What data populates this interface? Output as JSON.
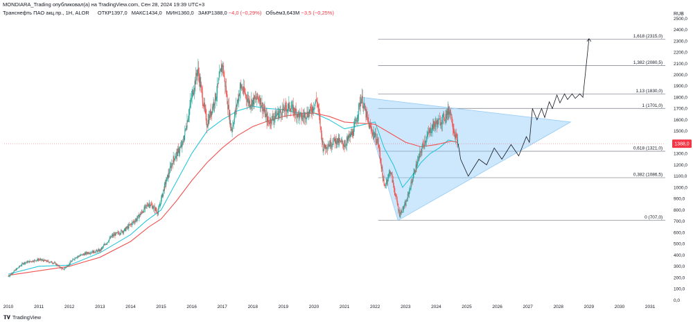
{
  "header": {
    "author_line": "MONDIARA_Trading опубликовал(а) на TradingView.com, Сен 28, 2024 19:39 UTC+3",
    "symbol": "Транснефть ПАО акц.пр., 1Н, ALOR",
    "open_label": "ОТКР",
    "open": "1397,0",
    "high_label": "МАКС",
    "high": "1434,0",
    "low_label": "МИН",
    "low": "1360,0",
    "close_label": "ЗАКР",
    "close": "1388,0",
    "change": "−4,0 (−0,29%)",
    "volume_label": "Объём",
    "volume": "3,643M",
    "volume_change": "−3,5 (−0,25%)"
  },
  "currency": "RUB",
  "branding": "TradingView",
  "price_label": "1388,0",
  "colors": {
    "up": "#26a69a",
    "down": "#ef5350",
    "ma_fast": "#26c6da",
    "ma_slow": "#ef5350",
    "triangle": "#90caf9",
    "fib": "#787b86",
    "projection": "#131722"
  },
  "chart_data": {
    "type": "candlestick",
    "x_axis": {
      "labels": [
        "2010",
        "2011",
        "2012",
        "2013",
        "2014",
        "2015",
        "2016",
        "2017",
        "2018",
        "2019",
        "2020",
        "2021",
        "2022",
        "2023",
        "2024",
        "2025",
        "2026",
        "2027",
        "2028",
        "2029",
        "2030",
        "2031"
      ]
    },
    "y_axis": {
      "min": 0,
      "max": 2500,
      "step": 100,
      "labels": [
        "0,0",
        "100,0",
        "200,0",
        "300,0",
        "400,0",
        "500,0",
        "600,0",
        "700,0",
        "800,0",
        "900,0",
        "1000,0",
        "1100,0",
        "1200,0",
        "1300,0",
        "1400,0",
        "1500,0",
        "1600,0",
        "1700,0",
        "1800,0",
        "1900,0",
        "2000,0",
        "2100,0",
        "2200,0",
        "2300,0",
        "2400,0",
        "2500,0"
      ]
    },
    "last_price": 1388.0,
    "price_path": [
      [
        2010.0,
        210
      ],
      [
        2010.5,
        330
      ],
      [
        2011.0,
        360
      ],
      [
        2011.5,
        330
      ],
      [
        2011.8,
        270
      ],
      [
        2012.2,
        380
      ],
      [
        2012.6,
        420
      ],
      [
        2013.0,
        440
      ],
      [
        2013.4,
        570
      ],
      [
        2013.8,
        620
      ],
      [
        2014.2,
        720
      ],
      [
        2014.6,
        860
      ],
      [
        2014.9,
        780
      ],
      [
        2015.1,
        1000
      ],
      [
        2015.4,
        1250
      ],
      [
        2015.7,
        1380
      ],
      [
        2016.0,
        1800
      ],
      [
        2016.2,
        2050
      ],
      [
        2016.5,
        1560
      ],
      [
        2016.8,
        1820
      ],
      [
        2017.0,
        2100
      ],
      [
        2017.3,
        1500
      ],
      [
        2017.6,
        1900
      ],
      [
        2017.9,
        1750
      ],
      [
        2018.2,
        1800
      ],
      [
        2018.5,
        1580
      ],
      [
        2018.8,
        1650
      ],
      [
        2019.2,
        1720
      ],
      [
        2019.6,
        1620
      ],
      [
        2019.9,
        1680
      ],
      [
        2020.1,
        1780
      ],
      [
        2020.3,
        1350
      ],
      [
        2020.7,
        1420
      ],
      [
        2021.0,
        1380
      ],
      [
        2021.3,
        1500
      ],
      [
        2021.55,
        1800
      ],
      [
        2021.8,
        1550
      ],
      [
        2022.1,
        1400
      ],
      [
        2022.3,
        1000
      ],
      [
        2022.5,
        1150
      ],
      [
        2022.8,
        760
      ],
      [
        2023.0,
        850
      ],
      [
        2023.3,
        1150
      ],
      [
        2023.6,
        1400
      ],
      [
        2023.9,
        1550
      ],
      [
        2024.2,
        1600
      ],
      [
        2024.45,
        1690
      ],
      [
        2024.6,
        1480
      ],
      [
        2024.72,
        1388
      ]
    ],
    "moving_averages": [
      {
        "name": "MA fast",
        "color": "#26c6da",
        "points": [
          [
            2010.0,
            230
          ],
          [
            2011.0,
            300
          ],
          [
            2012.0,
            310
          ],
          [
            2013.0,
            420
          ],
          [
            2014.0,
            580
          ],
          [
            2014.5,
            700
          ],
          [
            2015.0,
            800
          ],
          [
            2015.5,
            1050
          ],
          [
            2016.0,
            1300
          ],
          [
            2016.5,
            1500
          ],
          [
            2017.0,
            1600
          ],
          [
            2017.5,
            1680
          ],
          [
            2018.0,
            1720
          ],
          [
            2018.5,
            1700
          ],
          [
            2019.0,
            1690
          ],
          [
            2019.5,
            1660
          ],
          [
            2020.0,
            1660
          ],
          [
            2020.5,
            1600
          ],
          [
            2021.0,
            1520
          ],
          [
            2021.5,
            1550
          ],
          [
            2022.0,
            1580
          ],
          [
            2022.3,
            1350
          ],
          [
            2022.6,
            1200
          ],
          [
            2022.9,
            1000
          ],
          [
            2023.2,
            1100
          ],
          [
            2023.5,
            1220
          ],
          [
            2023.8,
            1300
          ],
          [
            2024.1,
            1350
          ],
          [
            2024.4,
            1420
          ],
          [
            2024.7,
            1400
          ]
        ]
      },
      {
        "name": "MA slow",
        "color": "#ef5350",
        "points": [
          [
            2010.0,
            220
          ],
          [
            2011.0,
            260
          ],
          [
            2012.0,
            300
          ],
          [
            2013.0,
            380
          ],
          [
            2014.0,
            520
          ],
          [
            2014.6,
            650
          ],
          [
            2015.0,
            720
          ],
          [
            2015.5,
            880
          ],
          [
            2016.0,
            1060
          ],
          [
            2016.5,
            1220
          ],
          [
            2017.0,
            1350
          ],
          [
            2017.5,
            1460
          ],
          [
            2018.0,
            1540
          ],
          [
            2018.5,
            1590
          ],
          [
            2019.0,
            1630
          ],
          [
            2019.5,
            1650
          ],
          [
            2020.0,
            1660
          ],
          [
            2020.5,
            1630
          ],
          [
            2021.0,
            1580
          ],
          [
            2021.5,
            1570
          ],
          [
            2022.0,
            1560
          ],
          [
            2022.5,
            1480
          ],
          [
            2023.0,
            1400
          ],
          [
            2023.5,
            1360
          ],
          [
            2024.0,
            1380
          ],
          [
            2024.5,
            1410
          ],
          [
            2024.72,
            1400
          ]
        ]
      }
    ],
    "fibonacci_levels": [
      {
        "label": "0 (707,0)",
        "value": 707.0
      },
      {
        "label": "0,382 (1086,5)",
        "value": 1086.5
      },
      {
        "label": "0,618 (1321,0)",
        "value": 1321.0
      },
      {
        "label": "1 (1701,0)",
        "value": 1701.0
      },
      {
        "label": "1,13 (1830,0)",
        "value": 1830.0
      },
      {
        "label": "1,382 (2080,5)",
        "value": 2080.5
      },
      {
        "label": "1,618 (2315,0)",
        "value": 2315.0
      }
    ],
    "fib_x_range": [
      2022.1,
      2031.5
    ],
    "triangle": [
      [
        2021.55,
        1800
      ],
      [
        2022.75,
        707
      ],
      [
        2028.4,
        1580
      ]
    ],
    "projection_path": [
      [
        2024.72,
        1388
      ],
      [
        2024.8,
        1250
      ],
      [
        2025.05,
        1100
      ],
      [
        2025.4,
        1250
      ],
      [
        2025.65,
        1200
      ],
      [
        2025.9,
        1350
      ],
      [
        2026.15,
        1250
      ],
      [
        2026.45,
        1380
      ],
      [
        2026.7,
        1280
      ],
      [
        2026.95,
        1450
      ],
      [
        2027.05,
        1400
      ],
      [
        2027.15,
        1700
      ],
      [
        2027.3,
        1600
      ],
      [
        2027.45,
        1700
      ],
      [
        2027.55,
        1620
      ],
      [
        2027.7,
        1760
      ],
      [
        2027.8,
        1700
      ],
      [
        2027.95,
        1820
      ],
      [
        2028.05,
        1750
      ],
      [
        2028.2,
        1830
      ],
      [
        2028.3,
        1780
      ],
      [
        2028.45,
        1830
      ],
      [
        2028.55,
        1790
      ],
      [
        2028.7,
        1830
      ],
      [
        2028.8,
        1800
      ],
      [
        2029.0,
        2320
      ]
    ]
  }
}
